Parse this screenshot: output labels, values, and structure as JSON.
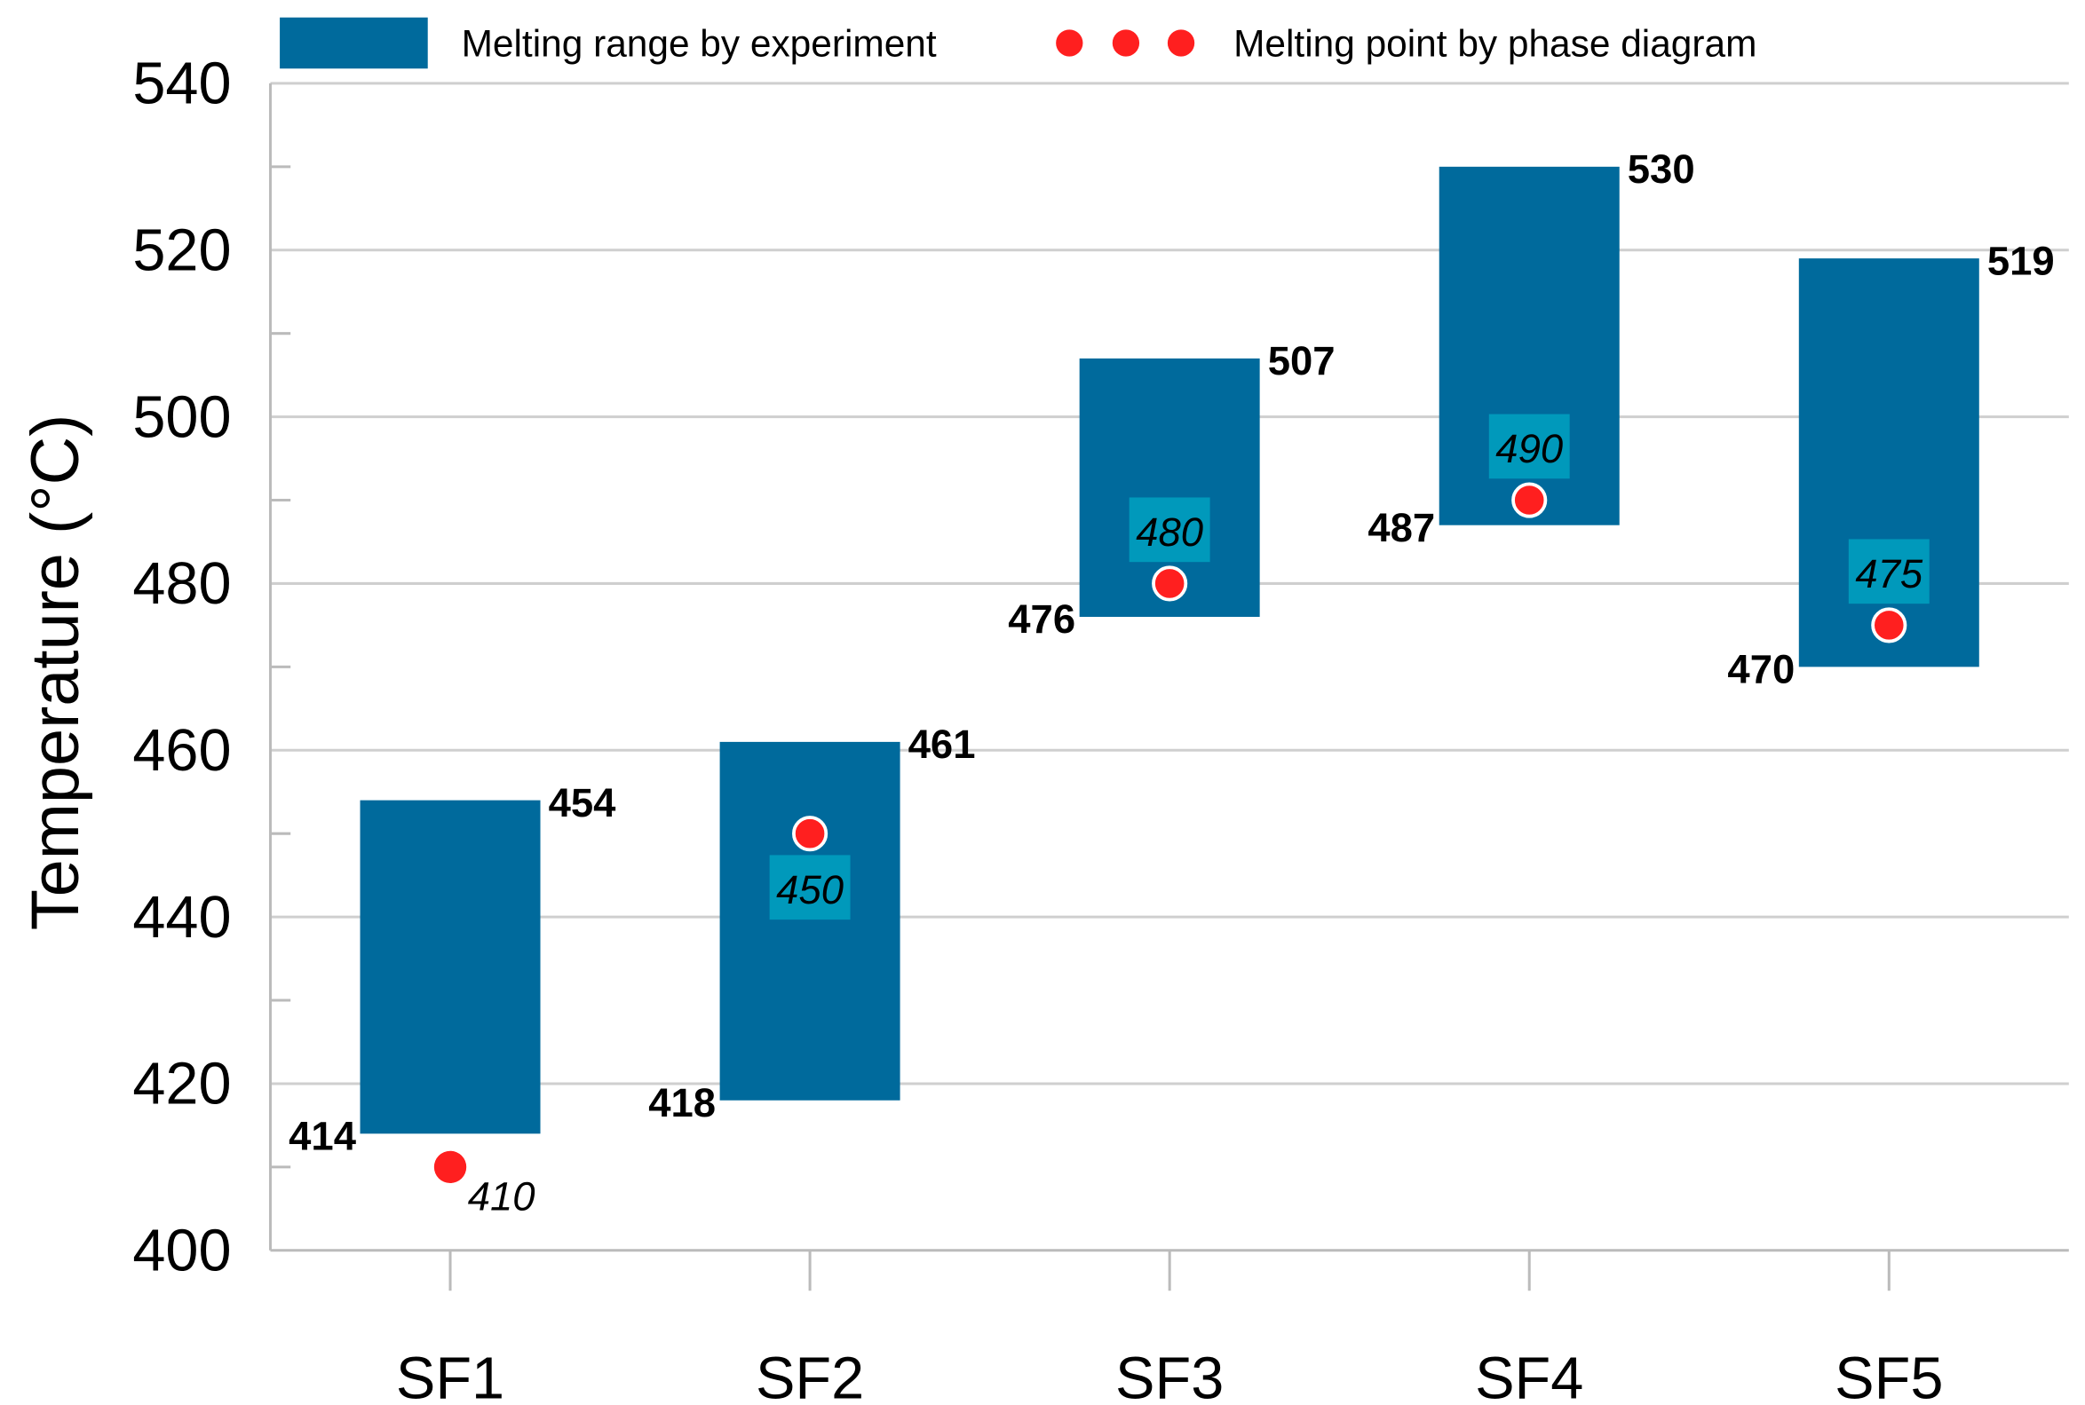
{
  "chart_data": {
    "type": "bar",
    "subtype": "floating-range-with-points",
    "title": "",
    "xlabel": "",
    "ylabel": "Temperature (°C)",
    "ylim": [
      400,
      540
    ],
    "yticks": [
      400,
      420,
      440,
      460,
      480,
      500,
      520,
      540
    ],
    "grid": true,
    "legend_position": "top",
    "categories": [
      "SF1",
      "SF2",
      "SF3",
      "SF4",
      "SF5"
    ],
    "series": [
      {
        "name": "Melting range by experiment",
        "type": "range-bar",
        "color": "#006a9c",
        "min": [
          414,
          418,
          476,
          487,
          470
        ],
        "max": [
          454,
          461,
          507,
          530,
          519
        ]
      },
      {
        "name": "Melting point by phase diagram",
        "type": "scatter",
        "color": "#ff1f1f",
        "values": [
          410,
          450,
          480,
          490,
          475
        ]
      }
    ],
    "point_label_background": "#0099bb",
    "legend": {
      "range_label": "Melting range by experiment",
      "point_label": "Melting point by phase diagram"
    }
  }
}
